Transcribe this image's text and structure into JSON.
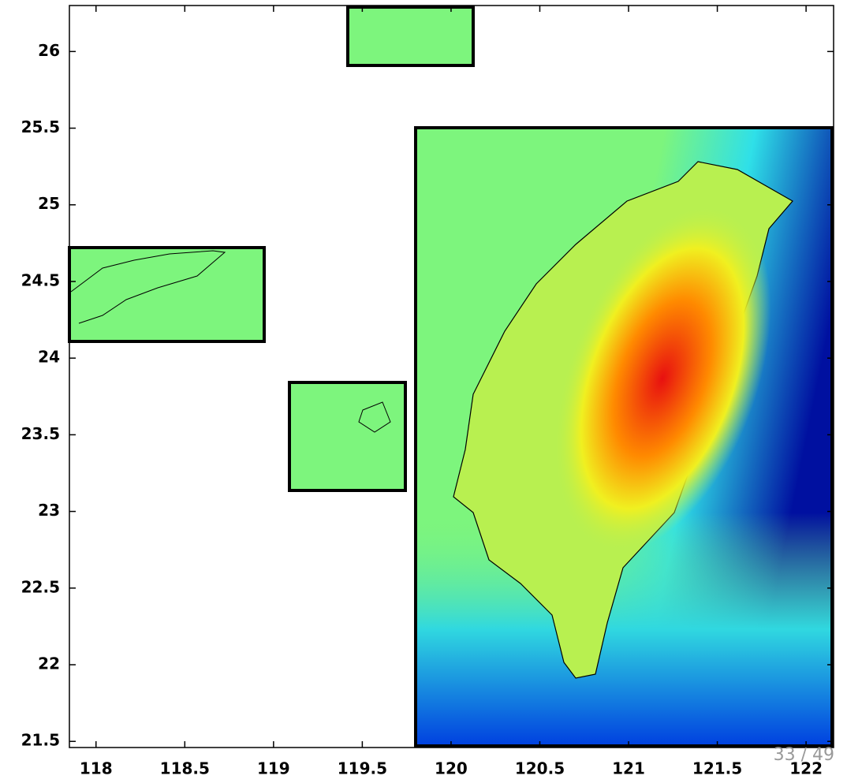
{
  "chart_data": {
    "type": "map",
    "xlim": [
      117.85,
      122.155
    ],
    "ylim": [
      21.46,
      26.3
    ],
    "xticks": [
      118,
      118.5,
      119,
      119.5,
      120,
      120.5,
      121,
      121.5,
      122
    ],
    "yticks": [
      21.5,
      22,
      22.5,
      23,
      23.5,
      24,
      24.5,
      25,
      25.5,
      26
    ]
  },
  "page_number": "33 / 49"
}
